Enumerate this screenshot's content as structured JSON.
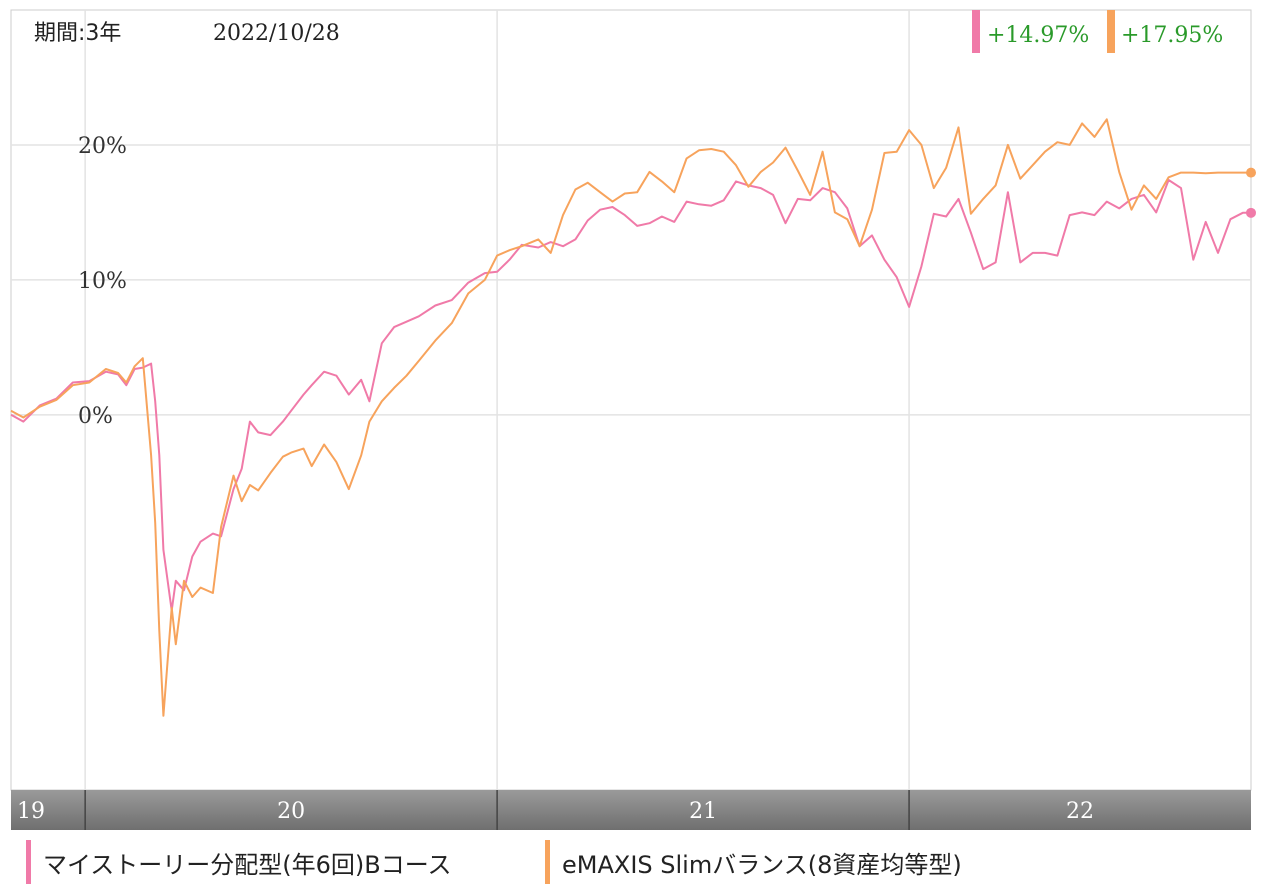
{
  "header": {
    "period_label": "期間:3年",
    "date": "2022/10/28",
    "returns": [
      {
        "value": "+14.97%",
        "color": "#f07aa8"
      },
      {
        "value": "+17.95%",
        "color": "#f7a35c"
      }
    ]
  },
  "legend": [
    {
      "label": "マイストーリー分配型(年6回)Bコース",
      "color": "#f07aa8"
    },
    {
      "label": "eMAXIS Slimバランス(8資産均等型)",
      "color": "#f7a35c"
    }
  ],
  "chart_data": {
    "type": "line",
    "x_unit": "年 (2019-10-28 〜 2022-10-28)",
    "x_tick_labels": [
      {
        "label": "19",
        "x": 2019.82
      },
      {
        "label": "20",
        "x": 2020.0
      },
      {
        "label": "21",
        "x": 2021.0
      },
      {
        "label": "22",
        "x": 2022.0
      }
    ],
    "y_tick_labels": [
      {
        "label": "0%",
        "y": 0
      },
      {
        "label": "10%",
        "y": 10
      },
      {
        "label": "20%",
        "y": 20
      }
    ],
    "xlim": [
      2019.82,
      2022.83
    ],
    "ylim": [
      -27.8,
      30
    ],
    "grid": true,
    "legend_position": "bottom",
    "series": [
      {
        "color": "#f07aa8",
        "x": [
          2019.82,
          2019.85,
          2019.89,
          2019.93,
          2019.97,
          2020.01,
          2020.05,
          2020.08,
          2020.1,
          2020.12,
          2020.14,
          2020.16,
          2020.17,
          2020.18,
          2020.19,
          2020.21,
          2020.22,
          2020.24,
          2020.26,
          2020.28,
          2020.31,
          2020.33,
          2020.36,
          2020.38,
          2020.4,
          2020.42,
          2020.45,
          2020.48,
          2020.5,
          2020.53,
          2020.55,
          2020.58,
          2020.61,
          2020.64,
          2020.67,
          2020.69,
          2020.72,
          2020.75,
          2020.78,
          2020.81,
          2020.85,
          2020.89,
          2020.93,
          2020.97,
          2021.0,
          2021.03,
          2021.06,
          2021.1,
          2021.13,
          2021.16,
          2021.19,
          2021.22,
          2021.25,
          2021.28,
          2021.31,
          2021.34,
          2021.37,
          2021.4,
          2021.43,
          2021.46,
          2021.49,
          2021.52,
          2021.55,
          2021.58,
          2021.61,
          2021.64,
          2021.67,
          2021.7,
          2021.73,
          2021.76,
          2021.79,
          2021.82,
          2021.85,
          2021.88,
          2021.91,
          2021.94,
          2021.97,
          2022.0,
          2022.03,
          2022.06,
          2022.09,
          2022.12,
          2022.15,
          2022.18,
          2022.21,
          2022.24,
          2022.27,
          2022.3,
          2022.33,
          2022.36,
          2022.39,
          2022.42,
          2022.45,
          2022.48,
          2022.51,
          2022.54,
          2022.57,
          2022.6,
          2022.63,
          2022.66,
          2022.69,
          2022.72,
          2022.75,
          2022.78,
          2022.81,
          2022.83
        ],
        "y": [
          0,
          -0.5,
          0.7,
          1.2,
          2.4,
          2.5,
          3.2,
          3.0,
          2.2,
          3.4,
          3.5,
          3.8,
          1.0,
          -3.0,
          -10,
          -14.5,
          -12.3,
          -13.0,
          -10.5,
          -9.4,
          -8.8,
          -9.0,
          -5.5,
          -4.0,
          -0.5,
          -1.3,
          -1.5,
          -0.5,
          0.3,
          1.5,
          2.2,
          3.2,
          2.9,
          1.5,
          2.6,
          1.0,
          5.3,
          6.5,
          6.9,
          7.3,
          8.1,
          8.5,
          9.8,
          10.5,
          10.6,
          11.5,
          12.6,
          12.4,
          12.8,
          12.5,
          13.0,
          14.4,
          15.2,
          15.4,
          14.8,
          14.0,
          14.2,
          14.7,
          14.3,
          15.8,
          15.6,
          15.5,
          15.9,
          17.3,
          17.0,
          16.8,
          16.3,
          14.2,
          16.0,
          15.9,
          16.8,
          16.5,
          15.3,
          12.5,
          13.3,
          11.5,
          10.2,
          8.0,
          11.0,
          14.9,
          14.7,
          16.0,
          13.5,
          10.8,
          11.3,
          16.5,
          11.3,
          12.0,
          12.0,
          11.8,
          14.8,
          15.0,
          14.8,
          15.8,
          15.3,
          16.0,
          16.3,
          15.0,
          17.4,
          16.8,
          11.5,
          14.3,
          12.0,
          14.5,
          14.97,
          14.97
        ]
      },
      {
        "color": "#f7a35c",
        "x": [
          2019.82,
          2019.85,
          2019.89,
          2019.93,
          2019.97,
          2020.01,
          2020.05,
          2020.08,
          2020.1,
          2020.12,
          2020.14,
          2020.16,
          2020.17,
          2020.18,
          2020.19,
          2020.21,
          2020.22,
          2020.24,
          2020.26,
          2020.28,
          2020.31,
          2020.33,
          2020.36,
          2020.38,
          2020.4,
          2020.42,
          2020.45,
          2020.48,
          2020.5,
          2020.53,
          2020.55,
          2020.58,
          2020.61,
          2020.64,
          2020.67,
          2020.69,
          2020.72,
          2020.75,
          2020.78,
          2020.81,
          2020.85,
          2020.89,
          2020.93,
          2020.97,
          2021.0,
          2021.03,
          2021.06,
          2021.1,
          2021.13,
          2021.16,
          2021.19,
          2021.22,
          2021.25,
          2021.28,
          2021.31,
          2021.34,
          2021.37,
          2021.4,
          2021.43,
          2021.46,
          2021.49,
          2021.52,
          2021.55,
          2021.58,
          2021.61,
          2021.64,
          2021.67,
          2021.7,
          2021.73,
          2021.76,
          2021.79,
          2021.82,
          2021.85,
          2021.88,
          2021.91,
          2021.94,
          2021.97,
          2022.0,
          2022.03,
          2022.06,
          2022.09,
          2022.12,
          2022.15,
          2022.18,
          2022.21,
          2022.24,
          2022.27,
          2022.3,
          2022.33,
          2022.36,
          2022.39,
          2022.42,
          2022.45,
          2022.48,
          2022.51,
          2022.54,
          2022.57,
          2022.6,
          2022.63,
          2022.66,
          2022.69,
          2022.72,
          2022.75,
          2022.78,
          2022.81,
          2022.83
        ],
        "y": [
          0.3,
          -0.2,
          0.6,
          1.1,
          2.2,
          2.4,
          3.4,
          3.1,
          2.4,
          3.6,
          4.2,
          -3.0,
          -8.0,
          -16.0,
          -22.3,
          -14.3,
          -17.0,
          -12.3,
          -13.5,
          -12.8,
          -13.2,
          -8.3,
          -4.5,
          -6.4,
          -5.2,
          -5.6,
          -4.3,
          -3.1,
          -2.8,
          -2.5,
          -3.8,
          -2.2,
          -3.5,
          -5.5,
          -3.0,
          -0.5,
          1.0,
          2.0,
          2.9,
          4.0,
          5.5,
          6.8,
          9.0,
          10.0,
          11.8,
          12.2,
          12.5,
          13.0,
          12.0,
          14.8,
          16.7,
          17.2,
          16.5,
          15.8,
          16.4,
          16.5,
          18.0,
          17.3,
          16.5,
          19.0,
          19.6,
          19.7,
          19.5,
          18.5,
          16.9,
          18.0,
          18.7,
          19.8,
          18.1,
          16.3,
          19.5,
          15.0,
          14.5,
          12.5,
          15.2,
          19.4,
          19.5,
          21.1,
          20.0,
          16.8,
          18.3,
          21.3,
          14.9,
          16.0,
          17.0,
          20.0,
          17.5,
          18.5,
          19.5,
          20.2,
          20.0,
          21.6,
          20.6,
          21.9,
          18.0,
          15.2,
          17.0,
          16.0,
          17.6,
          17.95,
          17.95,
          17.9,
          17.95,
          17.95,
          17.95,
          17.95
        ]
      }
    ]
  }
}
